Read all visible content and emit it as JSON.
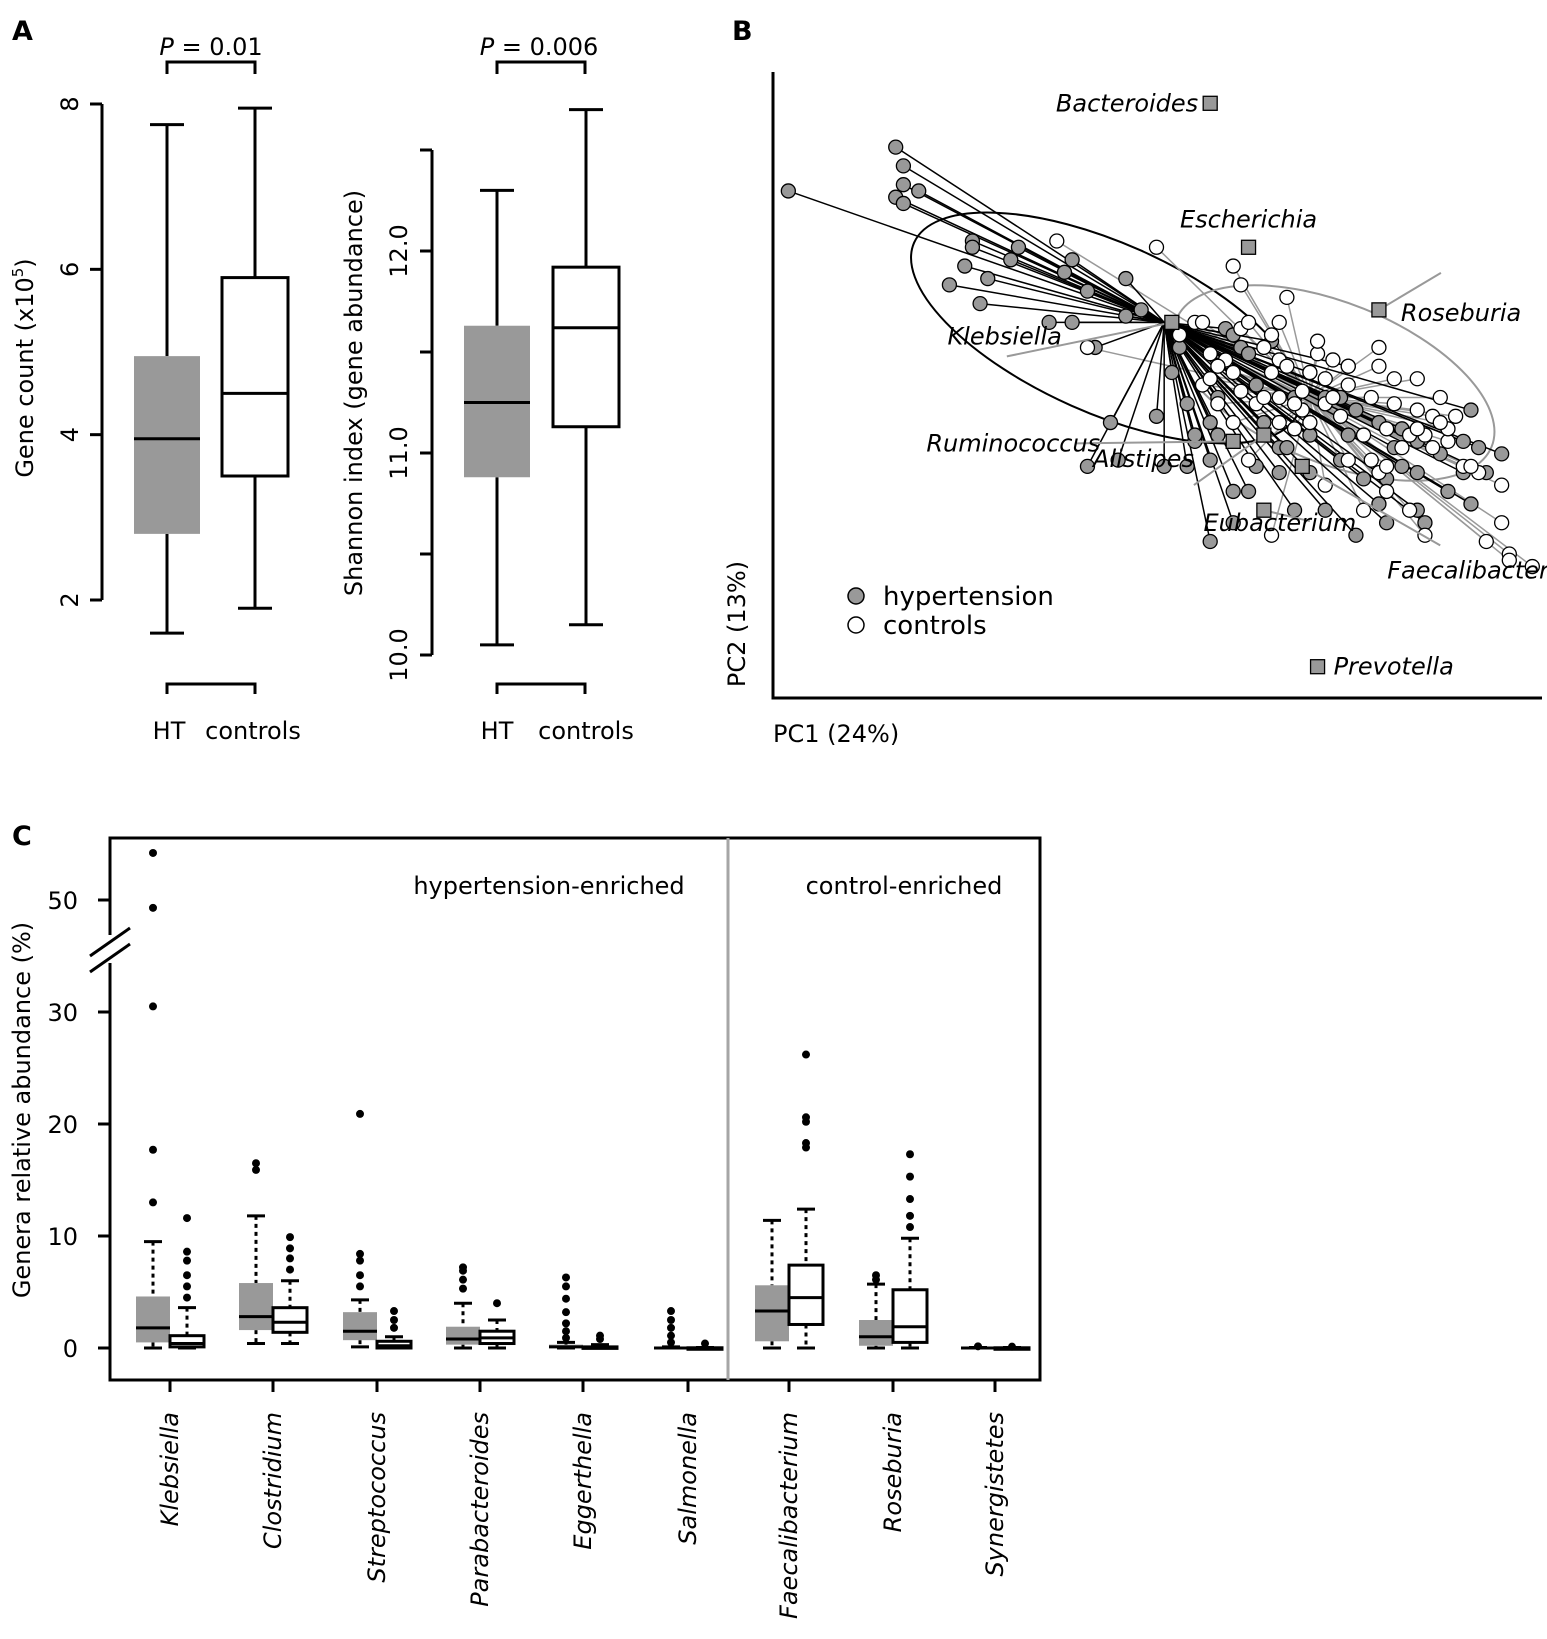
{
  "figure": {
    "panel_labels": [
      "A",
      "B",
      "C"
    ]
  },
  "colors": {
    "hypertension": "#999999",
    "controls": "#ffffff",
    "stroke": "#000000",
    "divider": "#a6a6a6",
    "arrow_control": "#999999"
  },
  "chart_data": [
    {
      "id": "A1",
      "type": "box",
      "ylabel_main": "Gene count (x10",
      "ylabel_sup": "5",
      "ylabel_tail": ")",
      "ylim": [
        2,
        8
      ],
      "yticks": [
        "2",
        "4",
        "6",
        "8"
      ],
      "ytick_values": [
        2,
        4,
        6,
        8
      ],
      "xlabel_ht": "HT",
      "xlabel_controls": "controls",
      "pvalue_prefix": "P",
      "pvalue_text": " = 0.01",
      "boxes": [
        {
          "group": "HT",
          "fill": "hypertension",
          "whisker_low": 1.6,
          "q1": 2.8,
          "median": 3.95,
          "q3": 4.95,
          "whisker_high": 7.75
        },
        {
          "group": "controls",
          "fill": "controls",
          "whisker_low": 1.9,
          "q1": 3.5,
          "median": 4.5,
          "q3": 5.9,
          "whisker_high": 7.95
        }
      ]
    },
    {
      "id": "A2",
      "type": "box",
      "ylabel": "Shannon index (gene abundance)",
      "ylim": [
        10.0,
        12.5
      ],
      "yticks": [
        "10.0",
        "11.0",
        "12.0"
      ],
      "ytick_values": [
        10.0,
        11.0,
        12.0
      ],
      "minor_ticks": [
        10.5,
        11.5,
        12.5
      ],
      "xlabel_ht": "HT",
      "xlabel_controls": "controls",
      "pvalue_prefix": "P",
      "pvalue_text": " = 0.006",
      "boxes": [
        {
          "group": "HT",
          "fill": "hypertension",
          "whisker_low": 10.05,
          "q1": 10.88,
          "median": 11.25,
          "q3": 11.63,
          "whisker_high": 12.3
        },
        {
          "group": "controls",
          "fill": "controls",
          "whisker_low": 10.15,
          "q1": 11.13,
          "median": 11.62,
          "q3": 11.92,
          "whisker_high": 12.7
        }
      ]
    },
    {
      "id": "B",
      "type": "scatter",
      "xlabel": "PC1 (24%)",
      "ylabel": "PC2 (13%)",
      "xlim": [
        0,
        100
      ],
      "ylim": [
        0,
        100
      ],
      "legend": [
        {
          "label": "hypertension",
          "fill": "hypertension"
        },
        {
          "label": "controls",
          "fill": "controls"
        }
      ],
      "centroids": {
        "hypertension": [
          51,
          60
        ],
        "controls": [
          70,
          48
        ]
      },
      "hypertension_points": [
        [
          2,
          81
        ],
        [
          16,
          88
        ],
        [
          17,
          85
        ],
        [
          17,
          82
        ],
        [
          16,
          80
        ],
        [
          19,
          81
        ],
        [
          17,
          79
        ],
        [
          26,
          73
        ],
        [
          26,
          72
        ],
        [
          32,
          72
        ],
        [
          31,
          70
        ],
        [
          25,
          69
        ],
        [
          39,
          70
        ],
        [
          38,
          68
        ],
        [
          28,
          67
        ],
        [
          23,
          66
        ],
        [
          27,
          63
        ],
        [
          46,
          67
        ],
        [
          41,
          65
        ],
        [
          48,
          62
        ],
        [
          46,
          61
        ],
        [
          36,
          60
        ],
        [
          39,
          60
        ],
        [
          42,
          56
        ],
        [
          53,
          56
        ],
        [
          59,
          59
        ],
        [
          60,
          58
        ],
        [
          61,
          56
        ],
        [
          65,
          57
        ],
        [
          70,
          52
        ],
        [
          72,
          48
        ],
        [
          74,
          48
        ],
        [
          76,
          46
        ],
        [
          75,
          53
        ],
        [
          70,
          42
        ],
        [
          66,
          40
        ],
        [
          55,
          41
        ],
        [
          57,
          38
        ],
        [
          54,
          37
        ],
        [
          51,
          37
        ],
        [
          60,
          33
        ],
        [
          62,
          33
        ],
        [
          60,
          28
        ],
        [
          70,
          36
        ],
        [
          68,
          30
        ],
        [
          77,
          35
        ],
        [
          80,
          35
        ],
        [
          79,
          31
        ],
        [
          80,
          28
        ],
        [
          81,
          40
        ],
        [
          82,
          37
        ],
        [
          84,
          41
        ],
        [
          84,
          36
        ],
        [
          87,
          39
        ],
        [
          90,
          36
        ],
        [
          90,
          41
        ],
        [
          93,
          36
        ],
        [
          95,
          39
        ],
        [
          91,
          46
        ],
        [
          84,
          30
        ],
        [
          85,
          28
        ],
        [
          76,
          26
        ],
        [
          72,
          30
        ],
        [
          62,
          55
        ],
        [
          64,
          44
        ],
        [
          67,
          40
        ],
        [
          58,
          48
        ],
        [
          52,
          52
        ],
        [
          50,
          45
        ],
        [
          57,
          44
        ],
        [
          63,
          37
        ],
        [
          79,
          44
        ],
        [
          82,
          43
        ],
        [
          57,
          25
        ],
        [
          74,
          38
        ],
        [
          75,
          42
        ],
        [
          88,
          33
        ],
        [
          91,
          31
        ],
        [
          63,
          50
        ],
        [
          68,
          48
        ],
        [
          44,
          44
        ],
        [
          45,
          38
        ],
        [
          41,
          37
        ],
        [
          54,
          47
        ],
        [
          55,
          42
        ],
        [
          58,
          42
        ],
        [
          92,
          40
        ],
        [
          66,
          36
        ]
      ],
      "control_points": [
        [
          37,
          73
        ],
        [
          50,
          72
        ],
        [
          60,
          69
        ],
        [
          61,
          66
        ],
        [
          67,
          64
        ],
        [
          61,
          59
        ],
        [
          65,
          58
        ],
        [
          64,
          56
        ],
        [
          66,
          54
        ],
        [
          67,
          53
        ],
        [
          70,
          52
        ],
        [
          72,
          51
        ],
        [
          71,
          55
        ],
        [
          73,
          54
        ],
        [
          75,
          50
        ],
        [
          75,
          53
        ],
        [
          79,
          56
        ],
        [
          84,
          51
        ],
        [
          84,
          46
        ],
        [
          85,
          42
        ],
        [
          86,
          40
        ],
        [
          88,
          41
        ],
        [
          90,
          37
        ],
        [
          92,
          36
        ],
        [
          95,
          34
        ],
        [
          95,
          28
        ],
        [
          96,
          23
        ],
        [
          99,
          21
        ],
        [
          96,
          22
        ],
        [
          93,
          25
        ],
        [
          85,
          26
        ],
        [
          80,
          33
        ],
        [
          78,
          38
        ],
        [
          83,
          42
        ],
        [
          86,
          45
        ],
        [
          88,
          43
        ],
        [
          81,
          47
        ],
        [
          78,
          48
        ],
        [
          72,
          47
        ],
        [
          69,
          46
        ],
        [
          69,
          49
        ],
        [
          66,
          48
        ],
        [
          63,
          47
        ],
        [
          60,
          44
        ],
        [
          58,
          47
        ],
        [
          56,
          50
        ],
        [
          57,
          55
        ],
        [
          53,
          58
        ],
        [
          55,
          60
        ],
        [
          59,
          54
        ],
        [
          66,
          44
        ],
        [
          80,
          43
        ],
        [
          82,
          40
        ],
        [
          84,
          43
        ],
        [
          87,
          44
        ],
        [
          89,
          45
        ],
        [
          77,
          42
        ],
        [
          75,
          38
        ],
        [
          74,
          45
        ],
        [
          70,
          44
        ],
        [
          61,
          49
        ],
        [
          64,
          48
        ],
        [
          65,
          52
        ],
        [
          58,
          53
        ],
        [
          77,
          30
        ],
        [
          65,
          26
        ],
        [
          72,
          34
        ],
        [
          79,
          36
        ],
        [
          83,
          30
        ],
        [
          62,
          38
        ],
        [
          68,
          43
        ],
        [
          80,
          37
        ],
        [
          41,
          56
        ],
        [
          56,
          60
        ],
        [
          62,
          60
        ],
        [
          66,
          60
        ],
        [
          71,
          57
        ],
        [
          73,
          48
        ],
        [
          68,
          47
        ],
        [
          60,
          52
        ],
        [
          57,
          51
        ],
        [
          79,
          53
        ],
        [
          81,
          51
        ],
        [
          87,
          48
        ],
        [
          91,
          37
        ]
      ],
      "genera": [
        {
          "name": "Bacteroides",
          "pos": [
            57,
            95
          ],
          "label_anchor": "end"
        },
        {
          "name": "Escherichia",
          "pos": [
            62,
            72
          ],
          "label_anchor": "middle"
        },
        {
          "name": "Klebsiella",
          "pos": [
            52,
            60
          ],
          "label_anchor": "end"
        },
        {
          "name": "Roseburia",
          "pos": [
            79,
            62
          ],
          "label_anchor": "start"
        },
        {
          "name": "Ruminococcus",
          "pos": [
            60,
            41
          ],
          "label_anchor": "end"
        },
        {
          "name": "Alistipes",
          "pos": [
            64,
            42
          ],
          "label_anchor": "end"
        },
        {
          "name": "Eubacterium",
          "pos": [
            64,
            30
          ],
          "label_anchor": "middle"
        },
        {
          "name": "Faecalibacterium",
          "pos": [
            69,
            37
          ],
          "label_anchor": "start"
        },
        {
          "name": "Prevotella",
          "pos": [
            71,
            5
          ],
          "label_anchor": "start"
        }
      ]
    },
    {
      "id": "C",
      "type": "box",
      "ylabel": "Genera relative abundance (%)",
      "yticks": [
        "0",
        "10",
        "20",
        "30",
        "50"
      ],
      "ytick_values": [
        0,
        10,
        20,
        30,
        50
      ],
      "axis_break": [
        32,
        48
      ],
      "section_labels": {
        "left": "hypertension-enriched",
        "right": "control-enriched"
      },
      "genera": [
        "Klebsiella",
        "Clostridium",
        "Streptococcus",
        "Parabacteroides",
        "Eggerthella",
        "Salmonella",
        "Faecalibacterium",
        "Roseburia",
        "Synergistetes"
      ],
      "series": [
        {
          "name": "HT",
          "fill": "hypertension",
          "boxes": [
            {
              "wl": 0,
              "q1": 0.5,
              "med": 1.8,
              "q3": 4.6,
              "wh": 9.5,
              "out": [
                13.0,
                17.7,
                30.5,
                49.3,
                54.2
              ]
            },
            {
              "wl": 0.4,
              "q1": 1.6,
              "med": 2.8,
              "q3": 5.8,
              "wh": 11.8,
              "out": [
                15.9,
                16.5
              ]
            },
            {
              "wl": 0.1,
              "q1": 0.7,
              "med": 1.5,
              "q3": 3.2,
              "wh": 4.3,
              "out": [
                5.5,
                6.5,
                7.8,
                8.4,
                20.9
              ]
            },
            {
              "wl": 0,
              "q1": 0.3,
              "med": 0.8,
              "q3": 1.9,
              "wh": 4.0,
              "out": [
                5.3,
                6.1,
                6.9,
                7.2
              ]
            },
            {
              "wl": 0,
              "q1": 0,
              "med": 0.1,
              "q3": 0.3,
              "wh": 0.5,
              "out": [
                0.9,
                1.5,
                2.2,
                3.2,
                4.4,
                5.5,
                6.3
              ]
            },
            {
              "wl": 0,
              "q1": 0,
              "med": 0,
              "q3": 0.05,
              "wh": 0.1,
              "out": [
                0.5,
                1.1,
                1.8,
                2.5,
                3.3
              ]
            },
            {
              "wl": 0,
              "q1": 0.6,
              "med": 3.3,
              "q3": 5.6,
              "wh": 11.4,
              "out": []
            },
            {
              "wl": 0,
              "q1": 0.2,
              "med": 1.0,
              "q3": 2.5,
              "wh": 5.7,
              "out": [
                6.1,
                6.5
              ]
            },
            {
              "wl": 0,
              "q1": 0,
              "med": 0,
              "q3": 0.02,
              "wh": 0.05,
              "out": [
                0.15
              ]
            }
          ]
        },
        {
          "name": "controls",
          "fill": "controls",
          "boxes": [
            {
              "wl": 0,
              "q1": 0.1,
              "med": 0.4,
              "q3": 1.1,
              "wh": 3.6,
              "out": [
                4.5,
                5.5,
                6.5,
                7.8,
                8.6,
                11.6
              ]
            },
            {
              "wl": 0.4,
              "q1": 1.4,
              "med": 2.3,
              "q3": 3.6,
              "wh": 6.0,
              "out": [
                7.0,
                8.0,
                8.9,
                9.9
              ]
            },
            {
              "wl": 0,
              "q1": 0,
              "med": 0.2,
              "q3": 0.6,
              "wh": 1.0,
              "out": [
                1.8,
                2.5,
                3.3
              ]
            },
            {
              "wl": 0,
              "q1": 0.4,
              "med": 0.9,
              "q3": 1.5,
              "wh": 2.5,
              "out": [
                4.0
              ]
            },
            {
              "wl": 0,
              "q1": 0,
              "med": 0,
              "q3": 0.1,
              "wh": 0.3,
              "out": [
                0.8,
                1.1
              ]
            },
            {
              "wl": 0,
              "q1": 0,
              "med": 0,
              "q3": 0.02,
              "wh": 0.05,
              "out": [
                0.4
              ]
            },
            {
              "wl": 0,
              "q1": 2.1,
              "med": 4.5,
              "q3": 7.4,
              "wh": 12.4,
              "out": [
                17.9,
                18.3,
                20.2,
                20.6,
                26.2
              ]
            },
            {
              "wl": 0,
              "q1": 0.5,
              "med": 1.9,
              "q3": 5.2,
              "wh": 9.8,
              "out": [
                10.8,
                11.8,
                13.3,
                15.3,
                17.3
              ]
            },
            {
              "wl": 0,
              "q1": 0,
              "med": 0,
              "q3": 0.02,
              "wh": 0.05,
              "out": [
                0.12
              ]
            }
          ]
        }
      ]
    }
  ]
}
